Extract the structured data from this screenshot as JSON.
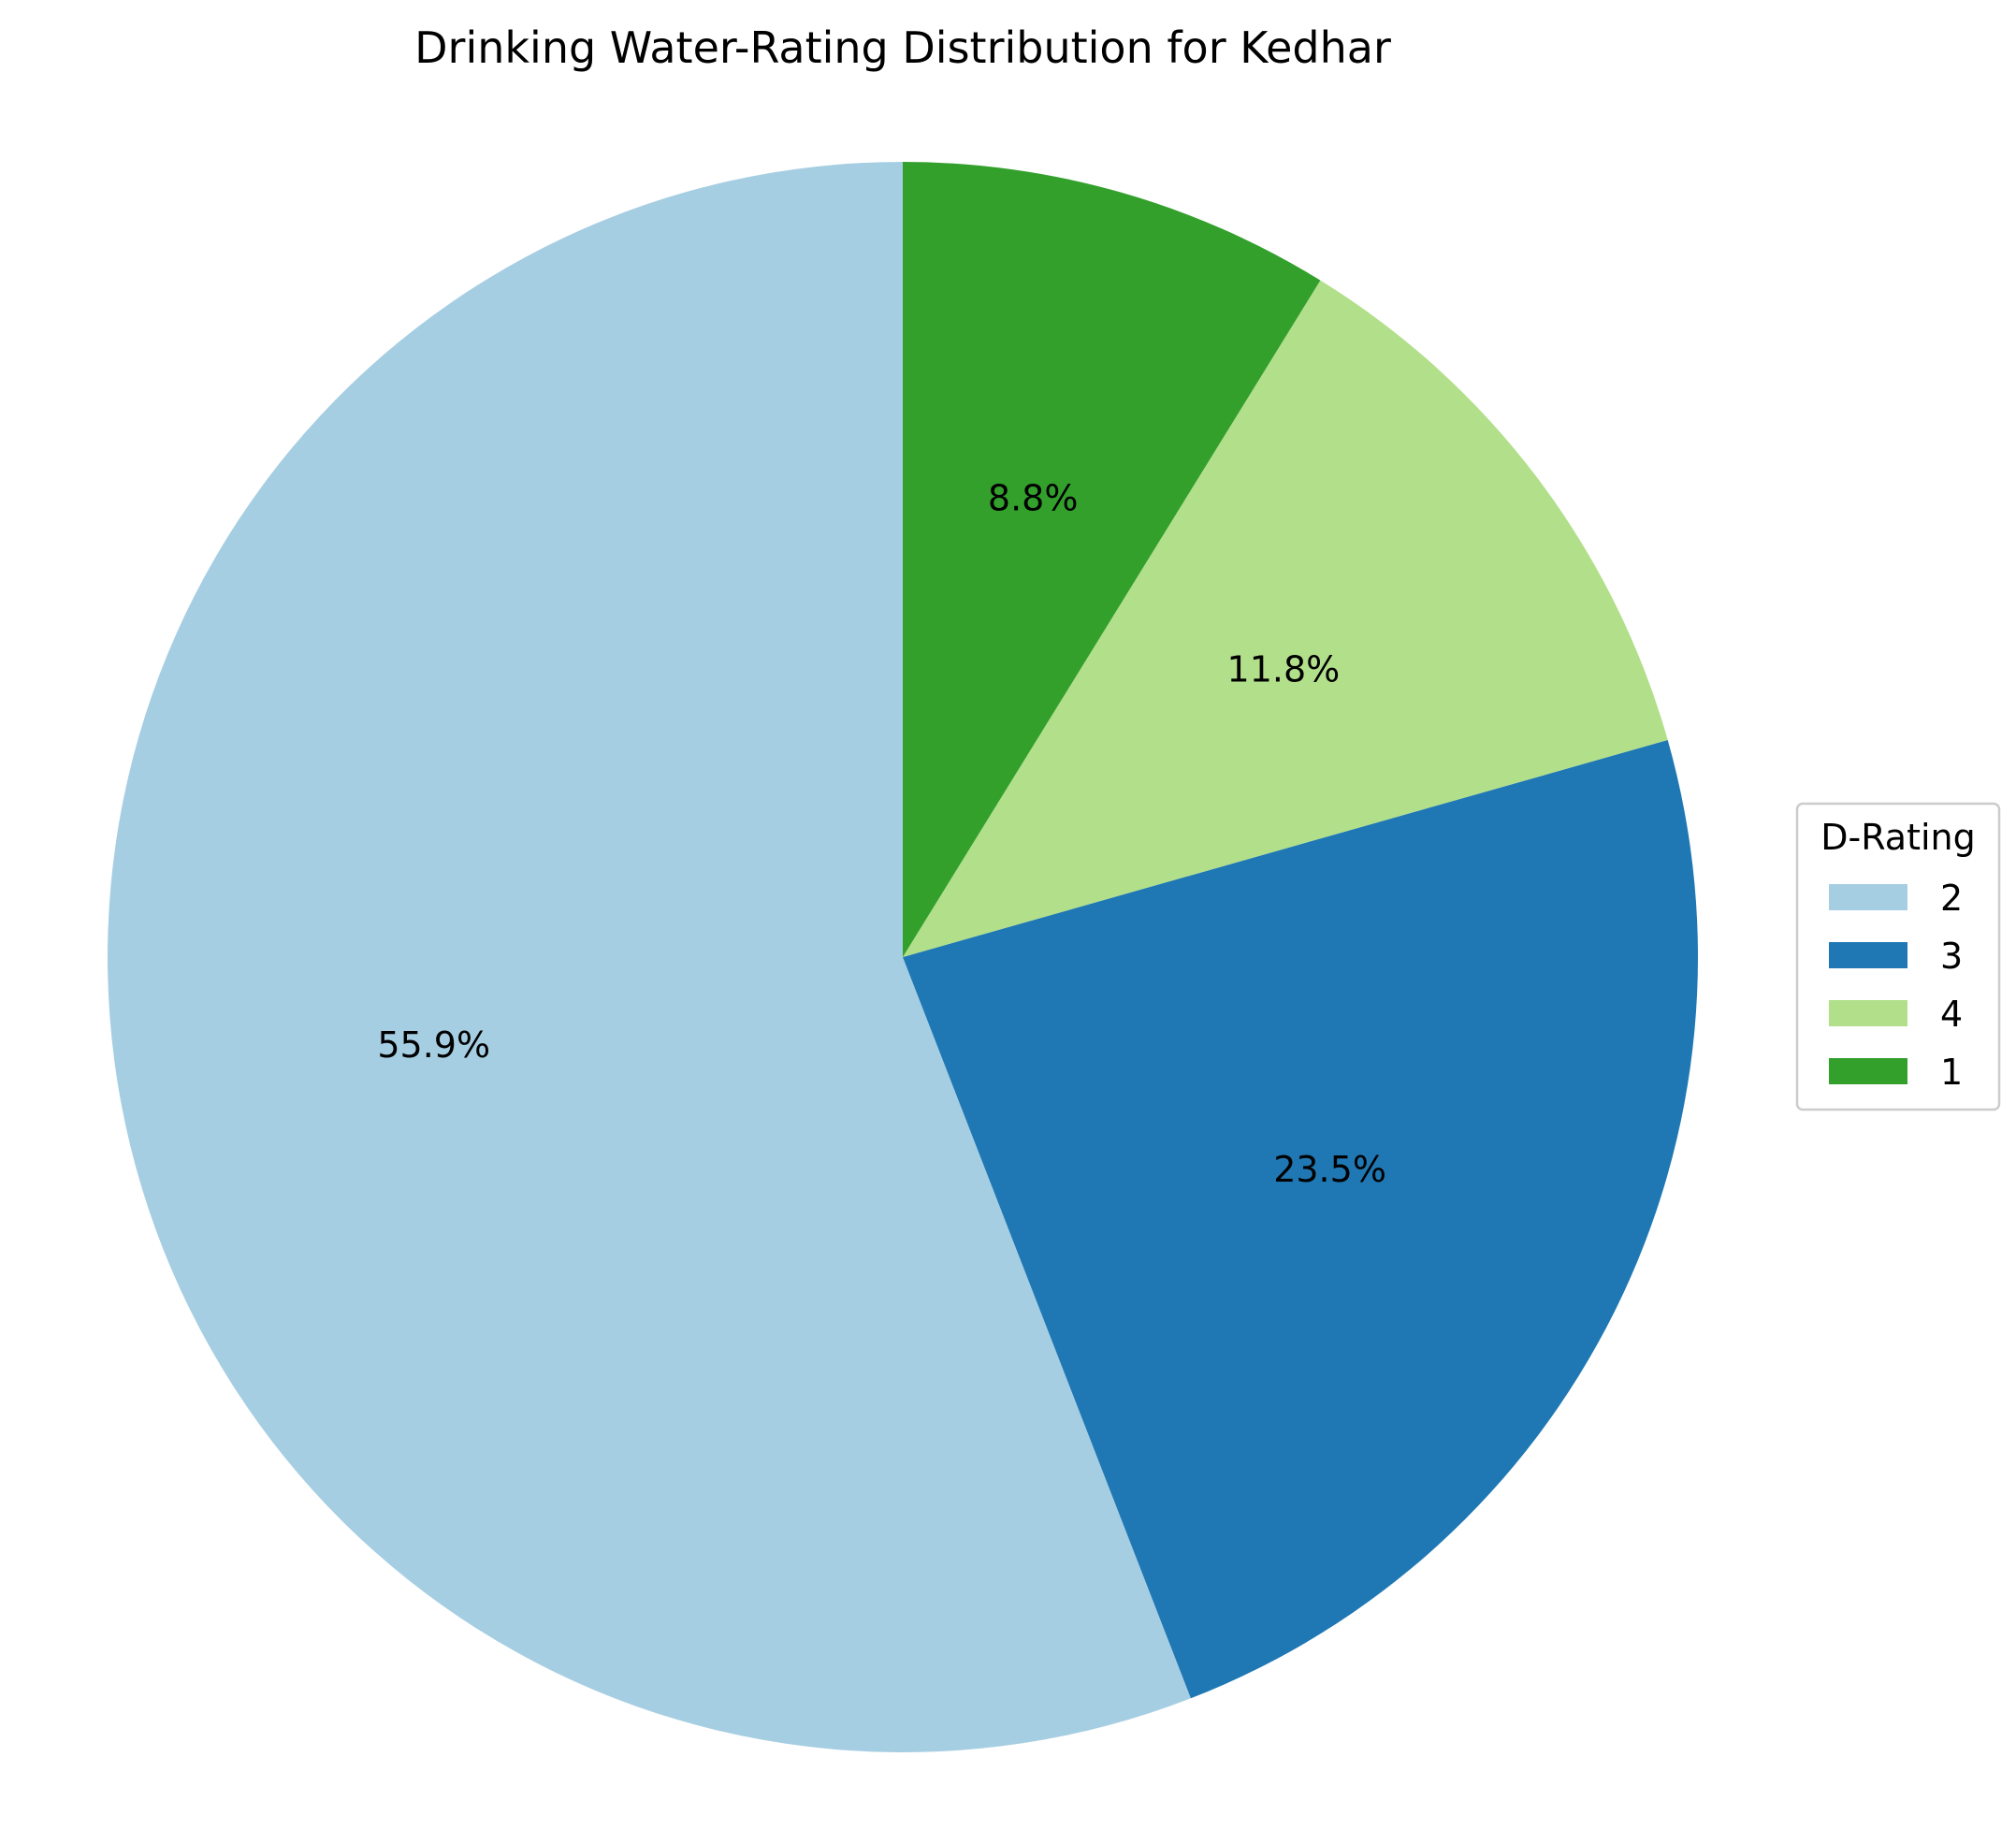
{
  "chart_data": {
    "type": "pie",
    "title": "Drinking Water-Rating Distribution for Kedhar",
    "categories": [
      "2",
      "3",
      "4",
      "1"
    ],
    "values": [
      55.9,
      23.5,
      11.8,
      8.8
    ],
    "labels": [
      "55.9%",
      "23.5%",
      "11.8%",
      "8.8%"
    ],
    "colors": [
      "#a6cee3",
      "#1f78b4",
      "#b2df8a",
      "#33a02c"
    ],
    "start_angle_deg": 90,
    "direction": "counterclockwise",
    "legend": {
      "title": "D-Rating",
      "placement": "center-right",
      "items": [
        "2",
        "3",
        "4",
        "1"
      ]
    }
  }
}
